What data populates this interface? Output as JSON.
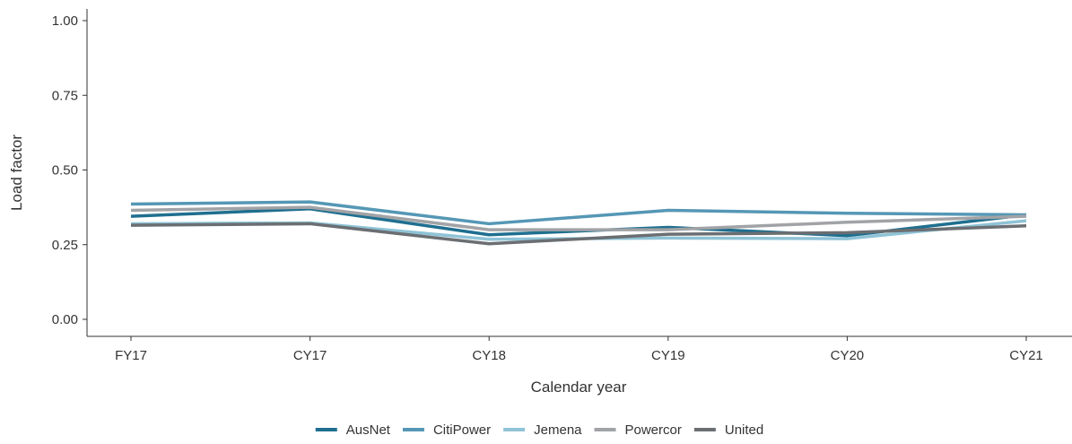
{
  "chart_data": {
    "type": "line",
    "title": "",
    "xlabel": "Calendar year",
    "ylabel": "Load factor",
    "categories": [
      "FY17",
      "CY17",
      "CY18",
      "CY19",
      "CY20",
      "CY21"
    ],
    "ylim": [
      0,
      1
    ],
    "yticks": [
      "0.00",
      "0.25",
      "0.50",
      "0.75",
      "1.00"
    ],
    "ytick_values": [
      0,
      0.25,
      0.5,
      0.75,
      1.0
    ],
    "grid": false,
    "legend_position": "bottom",
    "series": [
      {
        "name": "AusNet",
        "color": "#1f6f8f",
        "values": [
          0.345,
          0.37,
          0.283,
          0.308,
          0.28,
          0.35
        ]
      },
      {
        "name": "CitiPower",
        "color": "#5597b5",
        "values": [
          0.386,
          0.393,
          0.32,
          0.365,
          0.355,
          0.35
        ]
      },
      {
        "name": "Jemena",
        "color": "#8fc3d6",
        "values": [
          0.32,
          0.323,
          0.268,
          0.272,
          0.27,
          0.33
        ]
      },
      {
        "name": "Powercor",
        "color": "#a1a3a6",
        "values": [
          0.365,
          0.375,
          0.3,
          0.3,
          0.325,
          0.345
        ]
      },
      {
        "name": "United",
        "color": "#6b6e72",
        "values": [
          0.315,
          0.32,
          0.253,
          0.285,
          0.29,
          0.313
        ]
      }
    ]
  }
}
